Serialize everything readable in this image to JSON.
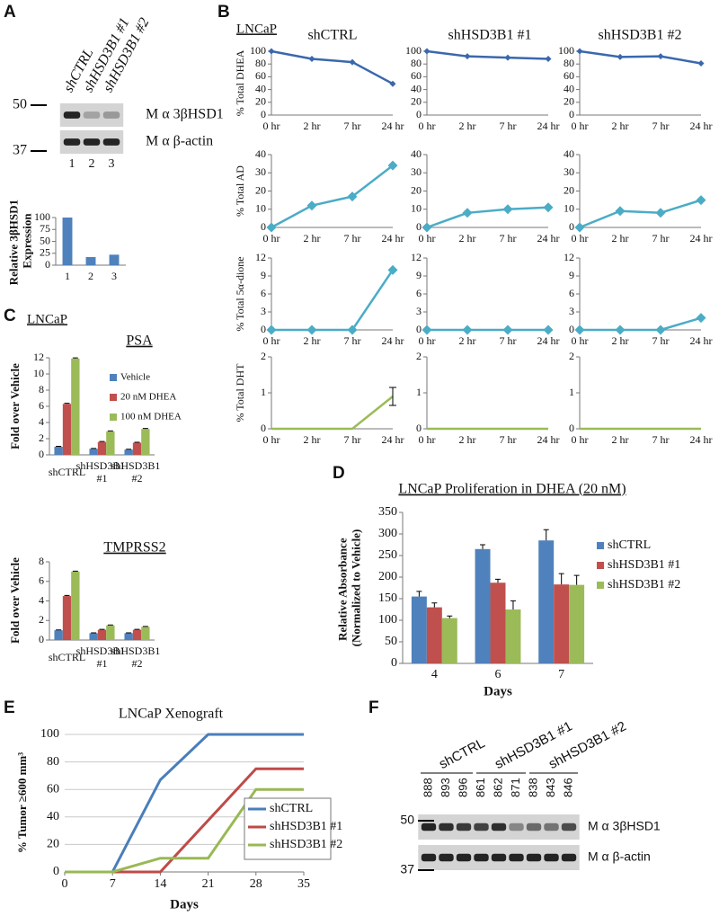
{
  "panels": {
    "a": "A",
    "b": "B",
    "c": "C",
    "d": "D",
    "e": "E",
    "f": "F"
  },
  "blot_a": {
    "lanes": [
      "shCTRL",
      "shHSD3B1 #1",
      "shHSD3B1 #2"
    ],
    "lane_numbers": [
      "1",
      "2",
      "3"
    ],
    "markers": [
      "50",
      "37"
    ],
    "antibodies": [
      "M α 3βHSD1",
      "M α β-actin"
    ]
  },
  "panel_b": {
    "cell_line": "LNCaP",
    "columns": [
      "shCTRL",
      "shHSD3B1 #1",
      "shHSD3B1 #2"
    ]
  },
  "panel_c": {
    "cell_line": "LNCaP"
  },
  "blot_f": {
    "groups": [
      "shCTRL",
      "shHSD3B1 #1",
      "shHSD3B1 #2"
    ],
    "lanes": [
      "888",
      "893",
      "896",
      "861",
      "862",
      "871",
      "838",
      "843",
      "846"
    ],
    "markers": [
      "50",
      "37"
    ],
    "antibodies": [
      "M α 3βHSD1",
      "M α β-actin"
    ]
  },
  "chart_data": [
    {
      "type": "bar",
      "y_label": "Relative 3βHSD1 Expression",
      "categories": [
        "1",
        "2",
        "3"
      ],
      "values": [
        100,
        17,
        22
      ],
      "color": "#4f81bd",
      "ylim": [
        0,
        100
      ],
      "yticks": [
        0,
        25,
        50,
        75,
        100
      ]
    },
    {
      "type": "line",
      "y_label": "% Total DHEA",
      "categories": [
        "0 hr",
        "2 hr",
        "7 hr",
        "24 hr"
      ],
      "values": [
        100,
        88,
        83,
        49
      ],
      "color": "#3a68ad",
      "marker": "diamond",
      "ylim": [
        0,
        100
      ],
      "yticks": [
        0,
        20,
        40,
        60,
        80,
        100
      ]
    },
    {
      "type": "line",
      "categories": [
        "0 hr",
        "2 hr",
        "7 hr",
        "24 hr"
      ],
      "values": [
        100,
        92,
        90,
        88
      ],
      "color": "#3a68ad",
      "marker": "diamond",
      "ylim": [
        0,
        100
      ],
      "yticks": [
        0,
        20,
        40,
        60,
        80,
        100
      ]
    },
    {
      "type": "line",
      "categories": [
        "0 hr",
        "2 hr",
        "7 hr",
        "24 hr"
      ],
      "values": [
        100,
        91,
        92,
        81
      ],
      "color": "#3a68ad",
      "marker": "diamond",
      "ylim": [
        0,
        100
      ],
      "yticks": [
        0,
        20,
        40,
        60,
        80,
        100
      ]
    },
    {
      "type": "line",
      "y_label": "% Total AD",
      "categories": [
        "0 hr",
        "2 hr",
        "7 hr",
        "24 hr"
      ],
      "values": [
        0,
        12,
        17,
        34
      ],
      "color": "#4bacc6",
      "marker": "diamond",
      "ylim": [
        0,
        40
      ],
      "yticks": [
        0,
        10,
        20,
        30,
        40
      ]
    },
    {
      "type": "line",
      "categories": [
        "0 hr",
        "2 hr",
        "7 hr",
        "24 hr"
      ],
      "values": [
        0,
        8,
        10,
        11
      ],
      "color": "#4bacc6",
      "marker": "diamond",
      "ylim": [
        0,
        40
      ],
      "yticks": [
        0,
        10,
        20,
        30,
        40
      ]
    },
    {
      "type": "line",
      "categories": [
        "0 hr",
        "2 hr",
        "7 hr",
        "24 hr"
      ],
      "values": [
        0,
        9,
        8,
        15
      ],
      "color": "#4bacc6",
      "marker": "diamond",
      "ylim": [
        0,
        40
      ],
      "yticks": [
        0,
        10,
        20,
        30,
        40
      ]
    },
    {
      "type": "line",
      "y_label": "% Total 5α-dione",
      "categories": [
        "0 hr",
        "2 hr",
        "7 hr",
        "24 hr"
      ],
      "values": [
        0,
        0,
        0,
        10
      ],
      "color": "#4bacc6",
      "marker": "diamond",
      "ylim": [
        0,
        12
      ],
      "yticks": [
        0,
        3,
        6,
        9,
        12
      ]
    },
    {
      "type": "line",
      "categories": [
        "0 hr",
        "2 hr",
        "7 hr",
        "24 hr"
      ],
      "values": [
        0,
        0,
        0,
        0
      ],
      "color": "#4bacc6",
      "marker": "diamond",
      "ylim": [
        0,
        12
      ],
      "yticks": [
        0,
        3,
        6,
        9,
        12
      ]
    },
    {
      "type": "line",
      "categories": [
        "0 hr",
        "2 hr",
        "7 hr",
        "24 hr"
      ],
      "values": [
        0,
        0,
        0,
        2
      ],
      "color": "#4bacc6",
      "marker": "diamond",
      "ylim": [
        0,
        12
      ],
      "yticks": [
        0,
        3,
        6,
        9,
        12
      ]
    },
    {
      "type": "line",
      "y_label": "% Total DHT",
      "categories": [
        "0 hr",
        "2 hr",
        "7 hr",
        "24 hr"
      ],
      "values": [
        0,
        0,
        0,
        0.9
      ],
      "errors": [
        null,
        null,
        null,
        0.25
      ],
      "color": "#9bbb59",
      "marker": "none",
      "ylim": [
        0,
        2
      ],
      "yticks": [
        0,
        1,
        2
      ]
    },
    {
      "type": "line",
      "categories": [
        "0 hr",
        "2 hr",
        "7 hr",
        "24 hr"
      ],
      "values": [
        0,
        0,
        0,
        0
      ],
      "color": "#9bbb59",
      "marker": "none",
      "ylim": [
        0,
        2
      ],
      "yticks": [
        0,
        1,
        2
      ]
    },
    {
      "type": "line",
      "categories": [
        "0 hr",
        "2 hr",
        "7 hr",
        "24 hr"
      ],
      "values": [
        0,
        0,
        0,
        0
      ],
      "color": "#9bbb59",
      "marker": "none",
      "ylim": [
        0,
        2
      ],
      "yticks": [
        0,
        1,
        2
      ]
    },
    {
      "type": "bar",
      "title": "PSA",
      "y_label": "Fold over Vehicle",
      "categories": [
        "shCTRL",
        "shHSD3B1 #1",
        "shHSD3B1 #2"
      ],
      "series": [
        {
          "name": "Vehicle",
          "color": "#4f81bd",
          "values": [
            1,
            0.75,
            0.65
          ],
          "errors": [
            0.05,
            0.04,
            0.04
          ]
        },
        {
          "name": "20 nM DHEA",
          "color": "#c0504d",
          "values": [
            6.3,
            1.6,
            1.5
          ],
          "errors": [
            0.08,
            0.05,
            0.05
          ]
        },
        {
          "name": "100 nM DHEA",
          "color": "#9bbb59",
          "values": [
            11.9,
            2.9,
            3.2
          ],
          "errors": [
            0.08,
            0.06,
            0.06
          ]
        }
      ],
      "ylim": [
        0,
        12
      ],
      "yticks": [
        0,
        2,
        4,
        6,
        8,
        10,
        12
      ],
      "legend": "upper right"
    },
    {
      "type": "bar",
      "title": "TMPRSS2",
      "y_label": "Fold over Vehicle",
      "categories": [
        "shCTRL",
        "shHSD3B1 #1",
        "shHSD3B1 #2"
      ],
      "series": [
        {
          "name": "Vehicle",
          "color": "#4f81bd",
          "values": [
            1,
            0.7,
            0.7
          ],
          "errors": [
            0.04,
            0.03,
            0.03
          ]
        },
        {
          "name": "20 nM DHEA",
          "color": "#c0504d",
          "values": [
            4.5,
            1.05,
            1.05
          ],
          "errors": [
            0.06,
            0.04,
            0.04
          ]
        },
        {
          "name": "100 nM DHEA",
          "color": "#9bbb59",
          "values": [
            7,
            1.5,
            1.35
          ],
          "errors": [
            0.05,
            0.04,
            0.04
          ]
        }
      ],
      "ylim": [
        0,
        8
      ],
      "yticks": [
        0,
        2,
        4,
        6,
        8
      ]
    },
    {
      "type": "bar",
      "title": "LNCaP Proliferation in DHEA (20 nM)",
      "x_label": "Days",
      "y_label": "Relative Absorbance (Normalized to Vehicle)",
      "categories": [
        "4",
        "6",
        "7"
      ],
      "series": [
        {
          "name": "shCTRL",
          "color": "#4f81bd",
          "values": [
            155,
            265,
            285
          ],
          "errors": [
            12,
            10,
            25
          ]
        },
        {
          "name": "shHSD3B1 #1",
          "color": "#c0504d",
          "values": [
            130,
            187,
            183
          ],
          "errors": [
            10,
            8,
            25
          ]
        },
        {
          "name": "shHSD3B1 #2",
          "color": "#9bbb59",
          "values": [
            105,
            125,
            182
          ],
          "errors": [
            5,
            20,
            22
          ]
        }
      ],
      "ylim": [
        0,
        350
      ],
      "yticks": [
        0,
        50,
        100,
        150,
        200,
        250,
        300,
        350
      ],
      "legend": "right"
    },
    {
      "type": "line",
      "title": "LNCaP Xenograft",
      "x_label": "Days",
      "y_label": "% Tumor ≥600 mm³",
      "series": [
        {
          "name": "shCTRL",
          "color": "#4a7ebb",
          "x": [
            0,
            7,
            14,
            21,
            35
          ],
          "values": [
            0,
            0,
            67,
            100,
            100
          ]
        },
        {
          "name": "shHSD3B1 #1",
          "color": "#be4b48",
          "x": [
            0,
            14,
            28,
            35
          ],
          "values": [
            0,
            0,
            75,
            75
          ]
        },
        {
          "name": "shHSD3B1 #2",
          "color": "#98b954",
          "x": [
            0,
            7,
            14,
            21,
            28,
            35
          ],
          "values": [
            0,
            0,
            10,
            10,
            60,
            60
          ]
        }
      ],
      "xlim": [
        0,
        35
      ],
      "xticks": [
        0,
        7,
        14,
        21,
        28,
        35
      ],
      "ylim": [
        0,
        100
      ],
      "yticks": [
        0,
        20,
        40,
        60,
        80,
        100
      ],
      "grid": true,
      "legend": "lower right"
    }
  ]
}
